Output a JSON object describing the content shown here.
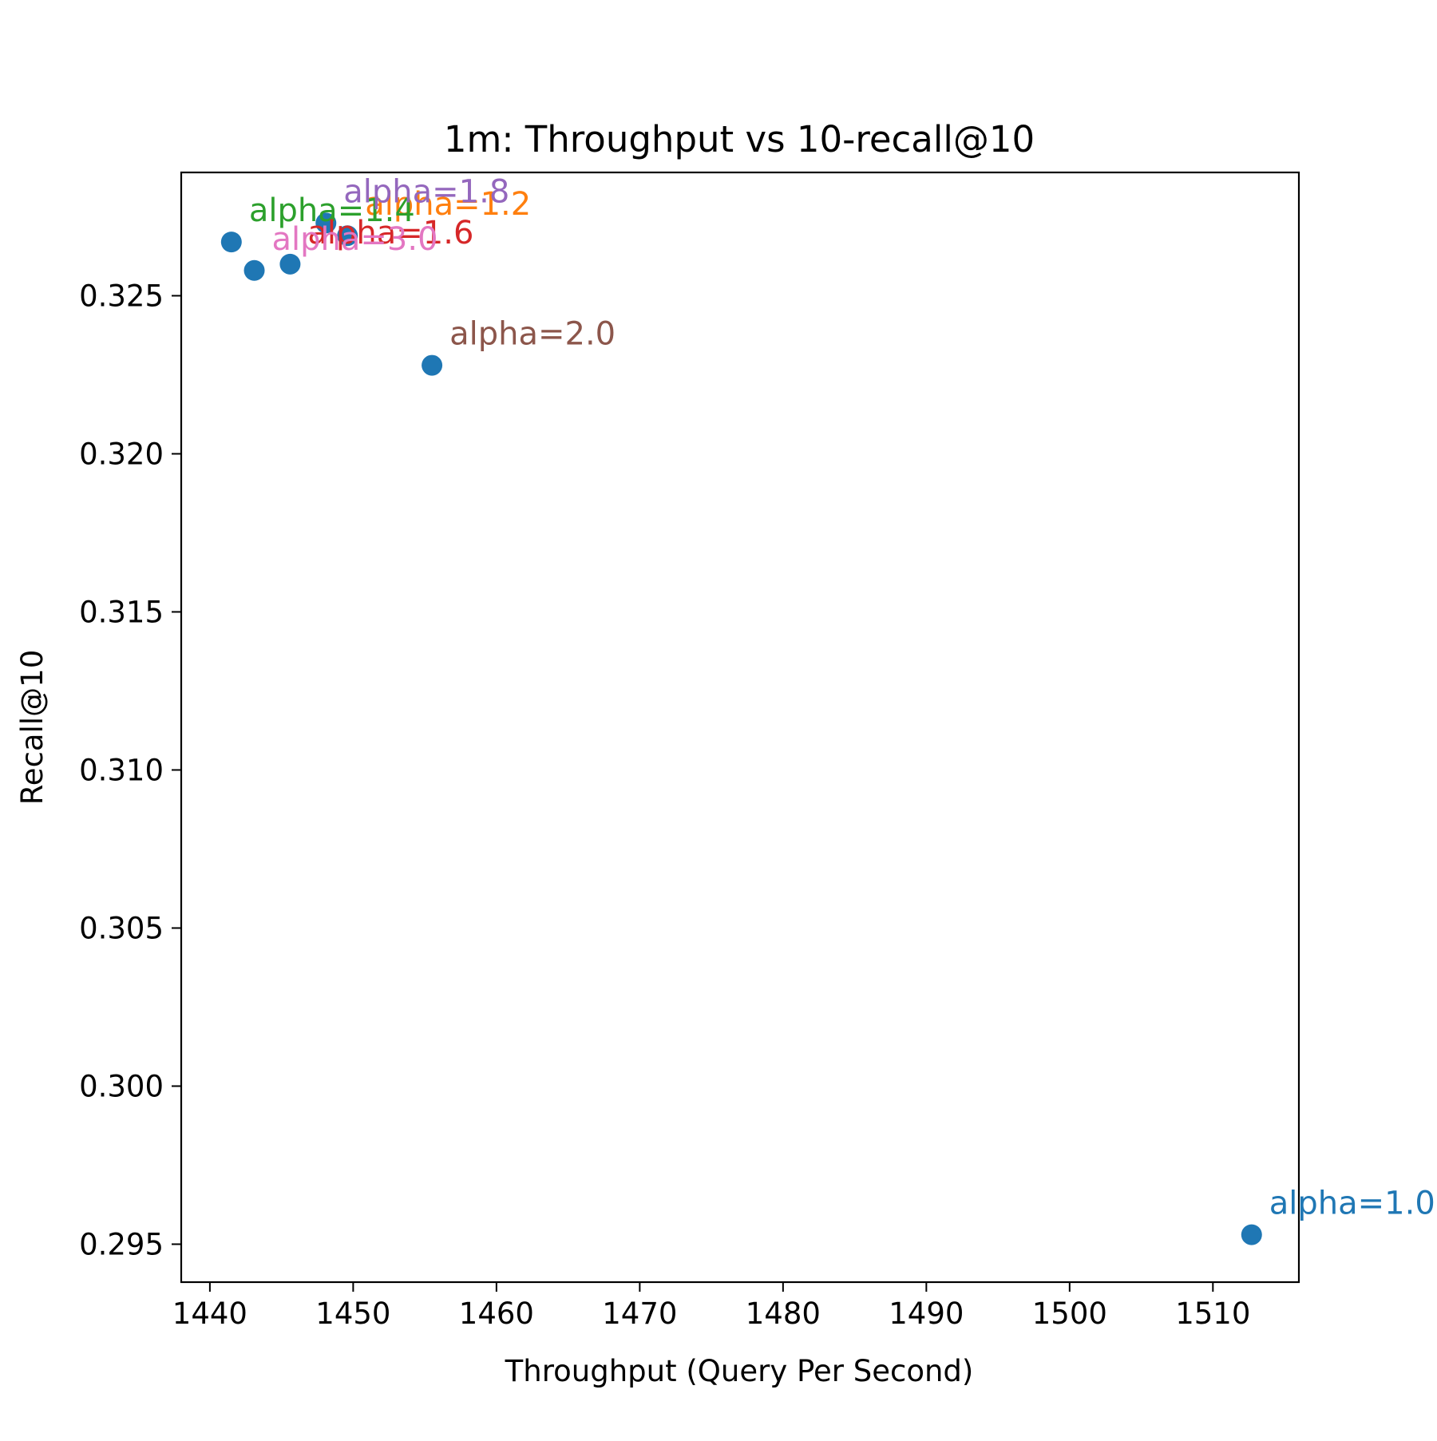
{
  "chart_data": {
    "type": "scatter",
    "title": "1m: Throughput vs 10-recall@10",
    "xlabel": "Throughput (Query Per Second)",
    "ylabel": "Recall@10",
    "xlim": [
      1438,
      1516
    ],
    "ylim": [
      0.2938,
      0.3289
    ],
    "xticks": [
      1440,
      1450,
      1460,
      1470,
      1480,
      1490,
      1500,
      1510
    ],
    "yticks": [
      0.295,
      0.3,
      0.305,
      0.31,
      0.315,
      0.32,
      0.325
    ],
    "xtick_labels": [
      "1440",
      "1450",
      "1460",
      "1470",
      "1480",
      "1490",
      "1500",
      "1510"
    ],
    "ytick_labels": [
      "0.295",
      "0.300",
      "0.305",
      "0.310",
      "0.315",
      "0.320",
      "0.325"
    ],
    "grid": false,
    "marker_color": "#1f77b4",
    "points": [
      {
        "label": "alpha=1.0",
        "x": 1512.7,
        "y": 0.2953,
        "label_color": "#1f77b4"
      },
      {
        "label": "alpha=1.2",
        "x": 1449.6,
        "y": 0.3269,
        "label_color": "#ff7f0e"
      },
      {
        "label": "alpha=1.4",
        "x": 1441.5,
        "y": 0.3267,
        "label_color": "#2ca02c"
      },
      {
        "label": "alpha=1.6",
        "x": 1445.6,
        "y": 0.326,
        "label_color": "#d62728"
      },
      {
        "label": "alpha=1.8",
        "x": 1448.1,
        "y": 0.3273,
        "label_color": "#9467bd"
      },
      {
        "label": "alpha=2.0",
        "x": 1455.5,
        "y": 0.3228,
        "label_color": "#8c564b"
      },
      {
        "label": "alpha=3.0",
        "x": 1443.1,
        "y": 0.3258,
        "label_color": "#e377c2"
      }
    ]
  }
}
